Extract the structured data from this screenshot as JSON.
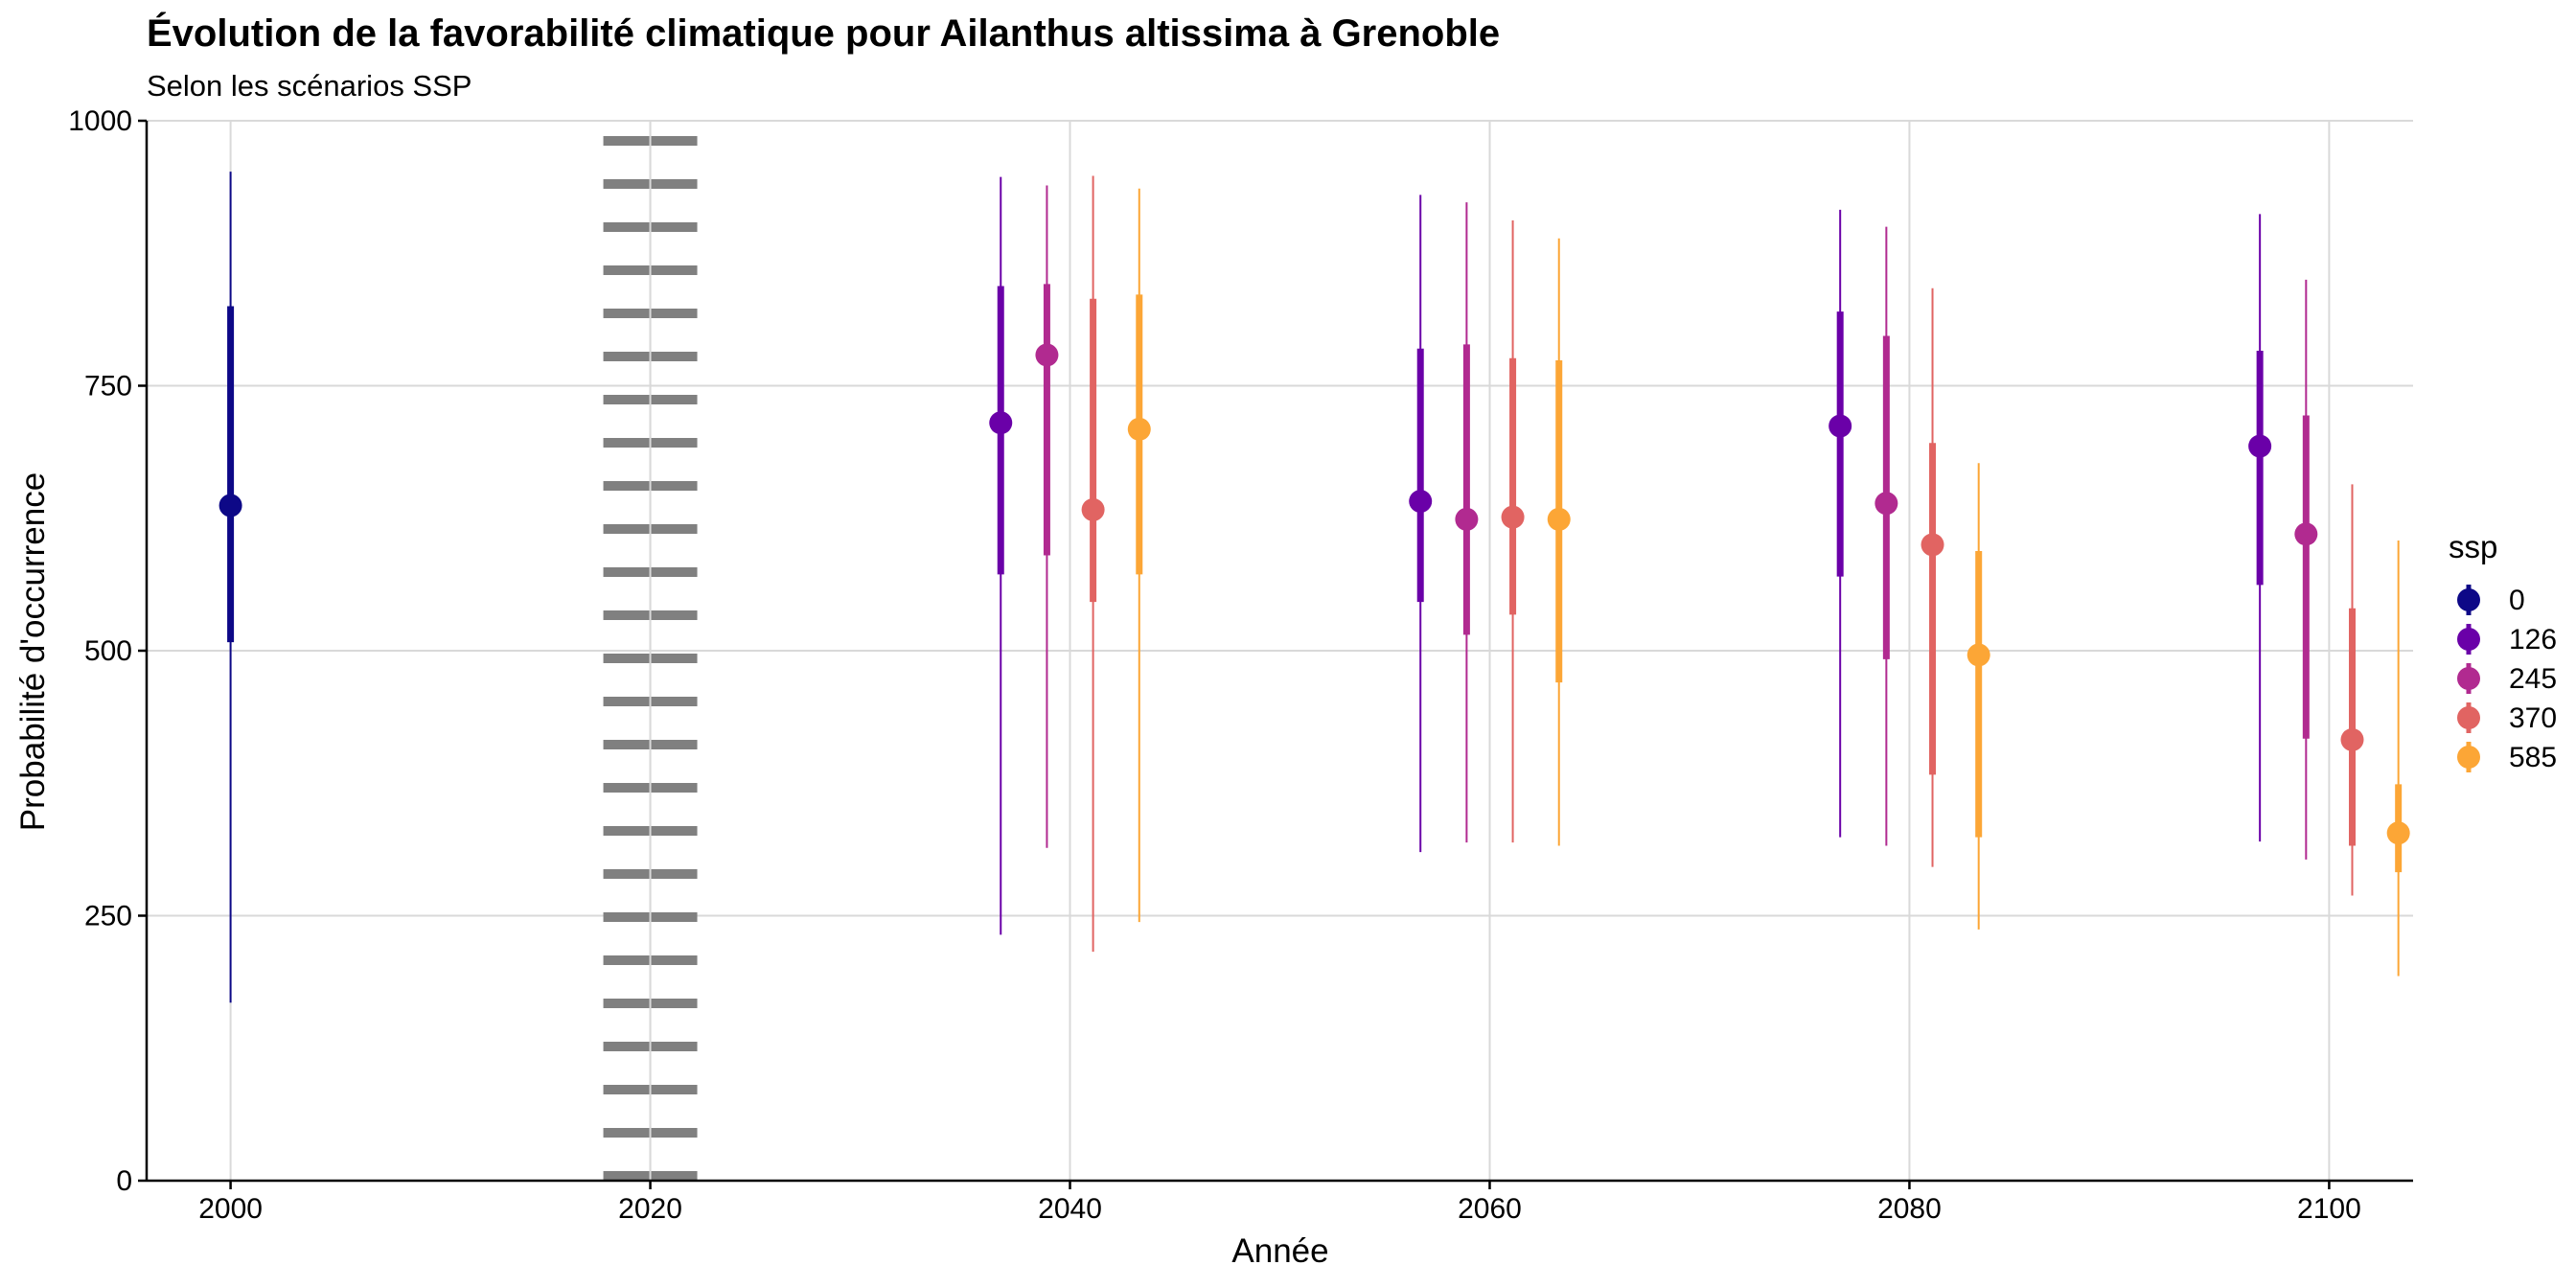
{
  "chart_data": {
    "type": "pointrange",
    "title": "Évolution de la favorabilité climatique pour Ailanthus altissima à Grenoble",
    "subtitle": "Selon les scénarios SSP",
    "xlabel": "Année",
    "ylabel": "Probabilité d'occurrence",
    "xlim": [
      1996,
      2104
    ],
    "ylim": [
      0,
      1000
    ],
    "x_ticks": [
      2000,
      2020,
      2040,
      2060,
      2080,
      2100
    ],
    "y_ticks": [
      0,
      250,
      500,
      750,
      1000
    ],
    "x_tick_labels": [
      "2000",
      "2020",
      "2040",
      "2060",
      "2080",
      "2100"
    ],
    "y_tick_labels": [
      "0",
      "250",
      "500",
      "750",
      "1000"
    ],
    "grid": true,
    "reference_line": {
      "x": 2020,
      "style": "dotted",
      "color": "#808080"
    },
    "legend": {
      "title": "ssp",
      "position": "right"
    },
    "series": [
      {
        "name": "0",
        "color": "#0d0887",
        "points": [
          {
            "x": 2000,
            "y": 637,
            "inner": [
              508,
              825
            ],
            "outer": [
              168,
              952
            ]
          }
        ]
      },
      {
        "name": "126",
        "color": "#6a00a8",
        "points": [
          {
            "x": 2040,
            "y": 715,
            "inner": [
              572,
              844
            ],
            "outer": [
              232,
              947
            ]
          },
          {
            "x": 2060,
            "y": 641,
            "inner": [
              546,
              785
            ],
            "outer": [
              310,
              930
            ]
          },
          {
            "x": 2080,
            "y": 712,
            "inner": [
              570,
              820
            ],
            "outer": [
              324,
              916
            ]
          },
          {
            "x": 2100,
            "y": 693,
            "inner": [
              562,
              783
            ],
            "outer": [
              320,
              912
            ]
          }
        ]
      },
      {
        "name": "245",
        "color": "#b12a90",
        "points": [
          {
            "x": 2040,
            "y": 779,
            "inner": [
              590,
              846
            ],
            "outer": [
              314,
              939
            ]
          },
          {
            "x": 2060,
            "y": 624,
            "inner": [
              515,
              789
            ],
            "outer": [
              319,
              923
            ]
          },
          {
            "x": 2080,
            "y": 639,
            "inner": [
              492,
              797
            ],
            "outer": [
              316,
              900
            ]
          },
          {
            "x": 2100,
            "y": 610,
            "inner": [
              417,
              722
            ],
            "outer": [
              303,
              850
            ]
          }
        ]
      },
      {
        "name": "370",
        "color": "#e16462",
        "points": [
          {
            "x": 2040,
            "y": 633,
            "inner": [
              546,
              832
            ],
            "outer": [
              216,
              948
            ]
          },
          {
            "x": 2060,
            "y": 626,
            "inner": [
              534,
              776
            ],
            "outer": [
              319,
              906
            ]
          },
          {
            "x": 2080,
            "y": 600,
            "inner": [
              383,
              696
            ],
            "outer": [
              296,
              842
            ]
          },
          {
            "x": 2100,
            "y": 416,
            "inner": [
              316,
              540
            ],
            "outer": [
              269,
              657
            ]
          }
        ]
      },
      {
        "name": "585",
        "color": "#fca636",
        "points": [
          {
            "x": 2040,
            "y": 709,
            "inner": [
              572,
              836
            ],
            "outer": [
              244,
              936
            ]
          },
          {
            "x": 2060,
            "y": 624,
            "inner": [
              470,
              774
            ],
            "outer": [
              316,
              889
            ]
          },
          {
            "x": 2080,
            "y": 496,
            "inner": [
              324,
              594
            ],
            "outer": [
              237,
              677
            ]
          },
          {
            "x": 2100,
            "y": 328,
            "inner": [
              291,
              374
            ],
            "outer": [
              193,
              604
            ]
          }
        ]
      }
    ]
  }
}
